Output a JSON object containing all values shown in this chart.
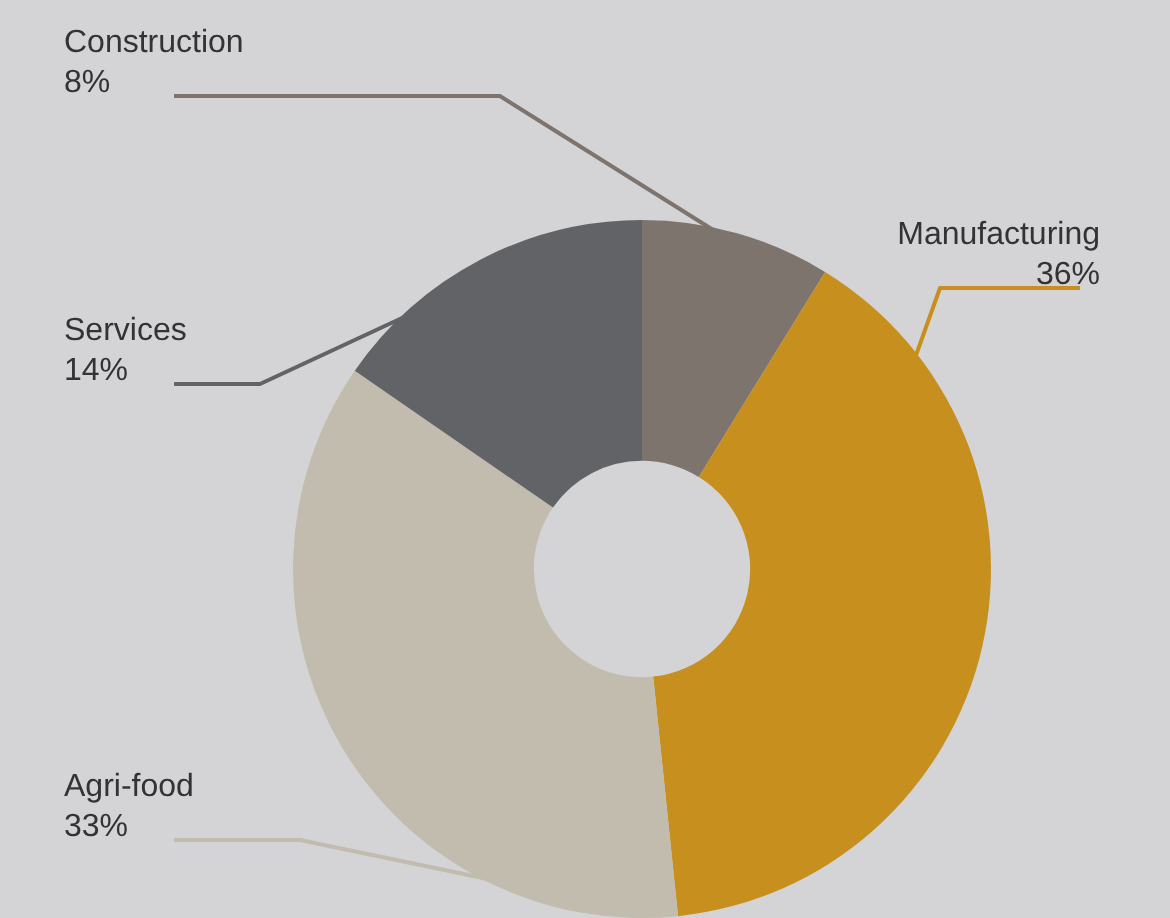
{
  "chart_data": {
    "type": "donut",
    "categories": [
      "Construction",
      "Manufacturing",
      "Agri-food",
      "Services"
    ],
    "values": [
      8,
      36,
      33,
      14
    ],
    "colors": [
      "#7d746e",
      "#c68f1e",
      "#c1bcae",
      "#626366"
    ],
    "value_labels": [
      "8%",
      "36%",
      "33%",
      "14%"
    ],
    "legend": false
  }
}
